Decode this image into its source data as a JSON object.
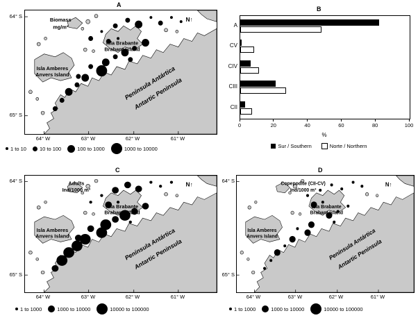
{
  "panels": {
    "A": {
      "letter": "A",
      "title": [
        "Biomass",
        "mg/m²"
      ],
      "lat_ticks": [
        "64° S",
        "65° S"
      ],
      "lon_ticks": [
        "64° W",
        "63° W",
        "62° W",
        "61° W"
      ],
      "labels": {
        "island_top": [
          "Isla Brabante",
          "Brabant Island"
        ],
        "island_left": [
          "Isla Amberes",
          "Anvers Island"
        ],
        "peninsula": [
          "Península Antártica",
          "Antartic Peninsula"
        ],
        "north": "N↑"
      }
    },
    "B": {
      "letter": "B"
    },
    "C": {
      "letter": "C",
      "title": [
        "Adults",
        "Ind/1000 m³"
      ],
      "lat_ticks": [
        "64° S",
        "65° S"
      ],
      "lon_ticks": [
        "64° W",
        "63° W",
        "62° W",
        "61° W"
      ],
      "labels": {
        "island_top": [
          "Isla Brabante",
          "Brabant Island"
        ],
        "island_left": [
          "Isla Amberes",
          "Anvers Island"
        ],
        "peninsula": [
          "Península Antártica",
          "Antartic Peninsula"
        ],
        "north": "N↑"
      }
    },
    "D": {
      "letter": "D",
      "title": [
        "Copepodite (CII-CV)",
        "Ind/1000 m³"
      ],
      "lat_ticks": [
        "64° S",
        "65° S"
      ],
      "lon_ticks": [
        "64° W",
        "63° W",
        "62° W",
        "61° W"
      ],
      "labels": {
        "island_top": [
          "Isla Brabante",
          "Brabant Island"
        ],
        "island_left": [
          "Isla Amberes",
          "Anvers Island"
        ],
        "peninsula": [
          "Península Antártica",
          "Antartic Peninsula"
        ],
        "north": "N↑"
      }
    }
  },
  "chart_data": [
    {
      "panel": "A",
      "type": "scatter",
      "subtype": "bubble-map",
      "title": "Biomass (mg/m²)",
      "units": "mg/m²",
      "coords": "svg viewBox 280x176 units, [x, y, size_class_index]",
      "size_classes": [
        {
          "label": "1 to 10",
          "radius": 2
        },
        {
          "label": "10 to 100",
          "radius": 3.5
        },
        {
          "label": "100 to 1000",
          "radius": 5.5
        },
        {
          "label": "1000 to 10000",
          "radius": 8
        }
      ],
      "stations": [
        [
          150,
          14,
          1
        ],
        [
          166,
          20,
          2
        ],
        [
          184,
          10,
          0
        ],
        [
          198,
          18,
          1
        ],
        [
          214,
          10,
          0
        ],
        [
          228,
          16,
          0
        ],
        [
          132,
          22,
          1
        ],
        [
          112,
          30,
          0
        ],
        [
          96,
          40,
          1
        ],
        [
          122,
          44,
          1
        ],
        [
          136,
          40,
          0
        ],
        [
          176,
          46,
          2
        ],
        [
          160,
          54,
          1
        ],
        [
          146,
          60,
          2
        ],
        [
          132,
          66,
          1
        ],
        [
          118,
          74,
          2
        ],
        [
          154,
          70,
          1
        ],
        [
          112,
          86,
          3
        ],
        [
          96,
          80,
          1
        ],
        [
          78,
          94,
          1
        ],
        [
          88,
          96,
          2
        ],
        [
          76,
          106,
          1
        ],
        [
          64,
          116,
          2
        ],
        [
          54,
          128,
          1
        ],
        [
          44,
          140,
          1
        ]
      ]
    },
    {
      "panel": "B",
      "type": "bar",
      "orientation": "horizontal",
      "categories": [
        "A",
        "CV",
        "CIV",
        "CIII",
        "CII"
      ],
      "series": [
        {
          "name": "Sur / Southern",
          "color": "#000000",
          "values": [
            82,
            1,
            6,
            21,
            3
          ]
        },
        {
          "name": "Norte / Northern",
          "color": "#ffffff",
          "values": [
            48,
            8,
            11,
            27,
            7
          ]
        }
      ],
      "xlabel": "%",
      "xlim": [
        0,
        100
      ],
      "xticks": [
        0,
        20,
        40,
        60,
        80,
        100
      ],
      "legend_position": "bottom"
    },
    {
      "panel": "C",
      "type": "scatter",
      "subtype": "bubble-map",
      "title": "Adults (Ind/1000 m³)",
      "units": "Ind/1000 m³",
      "coords": "svg viewBox 280x176 units, [x, y, size_class_index]",
      "size_classes": [
        {
          "label": "1 to 1000",
          "radius": 2.2
        },
        {
          "label": "1000 to 10000",
          "radius": 5
        },
        {
          "label": "10000 to 100000",
          "radius": 8
        }
      ],
      "stations": [
        [
          150,
          14,
          1
        ],
        [
          166,
          20,
          1
        ],
        [
          184,
          10,
          0
        ],
        [
          198,
          16,
          0
        ],
        [
          214,
          10,
          0
        ],
        [
          132,
          22,
          1
        ],
        [
          112,
          30,
          0
        ],
        [
          96,
          40,
          0
        ],
        [
          122,
          44,
          1
        ],
        [
          136,
          40,
          0
        ],
        [
          176,
          46,
          1
        ],
        [
          160,
          54,
          1
        ],
        [
          146,
          60,
          2
        ],
        [
          132,
          66,
          1
        ],
        [
          118,
          74,
          2
        ],
        [
          154,
          70,
          0
        ],
        [
          112,
          86,
          2
        ],
        [
          96,
          80,
          1
        ],
        [
          78,
          94,
          1
        ],
        [
          88,
          96,
          2
        ],
        [
          76,
          106,
          2
        ],
        [
          64,
          116,
          2
        ],
        [
          54,
          128,
          2
        ],
        [
          44,
          140,
          1
        ]
      ]
    },
    {
      "panel": "D",
      "type": "scatter",
      "subtype": "bubble-map",
      "title": "Copepodite (CII-CV) (Ind/1000 m³)",
      "units": "Ind/1000 m³",
      "coords": "svg viewBox 280x176 units, [x, y, size_class_index]",
      "size_classes": [
        {
          "label": "1 to 1000",
          "radius": 2.2
        },
        {
          "label": "1000 to 10000",
          "radius": 5
        },
        {
          "label": "10000 to 100000",
          "radius": 8
        }
      ],
      "stations": [
        [
          150,
          14,
          0
        ],
        [
          166,
          20,
          0
        ],
        [
          184,
          10,
          0
        ],
        [
          198,
          16,
          0
        ],
        [
          132,
          22,
          0
        ],
        [
          112,
          30,
          0
        ],
        [
          122,
          44,
          1
        ],
        [
          136,
          40,
          0
        ],
        [
          176,
          46,
          0
        ],
        [
          160,
          54,
          0
        ],
        [
          146,
          60,
          1
        ],
        [
          118,
          74,
          1
        ],
        [
          154,
          70,
          0
        ],
        [
          112,
          86,
          1
        ],
        [
          96,
          80,
          0
        ],
        [
          88,
          96,
          1
        ],
        [
          76,
          106,
          0
        ],
        [
          64,
          116,
          1
        ],
        [
          54,
          128,
          0
        ],
        [
          44,
          140,
          0
        ]
      ]
    }
  ]
}
